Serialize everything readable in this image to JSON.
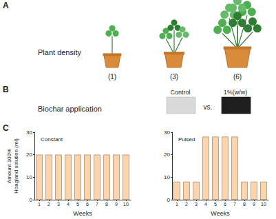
{
  "panels": {
    "A": {
      "label": "A",
      "title": "Plant density",
      "pots": [
        "(1)",
        "(3)",
        "(6)"
      ]
    },
    "B": {
      "label": "B",
      "title": "Biochar application",
      "treatments": [
        "Control",
        "1%(w/w)"
      ],
      "separator": "vs."
    },
    "C": {
      "label": "C"
    }
  },
  "chart_data": [
    {
      "type": "bar",
      "title": "Constant",
      "categories": [
        "1",
        "2",
        "3",
        "4",
        "5",
        "6",
        "7",
        "8",
        "9",
        "10"
      ],
      "values": [
        20,
        20,
        20,
        20,
        20,
        20,
        20,
        20,
        20,
        20
      ],
      "color": "#fdd5ad",
      "xlabel": "Weeks",
      "ylabel": "Amount 100%\nHoagland solution (ml)",
      "ylim": [
        0,
        30
      ],
      "yticks": [
        0,
        10,
        20,
        30
      ],
      "grid": false
    },
    {
      "type": "bar",
      "title": "Pulsed",
      "categories": [
        "1",
        "2",
        "3",
        "4",
        "5",
        "6",
        "7",
        "8",
        "9",
        "10"
      ],
      "values": [
        8,
        8,
        8,
        28,
        28,
        28,
        28,
        8,
        8,
        8
      ],
      "color": "#fdd5ad",
      "xlabel": "Weeks",
      "ylim": [
        0,
        30
      ],
      "yticks": [
        0,
        10,
        20,
        30
      ],
      "grid": false
    }
  ]
}
